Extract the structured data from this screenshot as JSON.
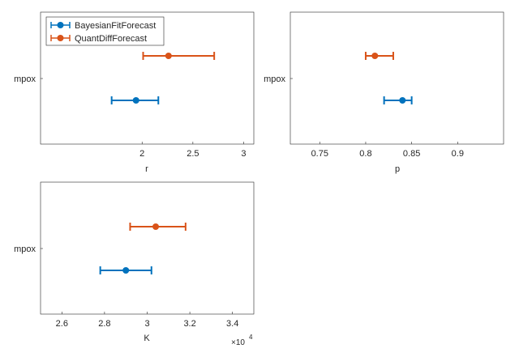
{
  "chart_data": [
    {
      "type": "errorbar",
      "xlabel": "r",
      "category_labels": [
        "mpox"
      ],
      "xlim": [
        1.0,
        3.1
      ],
      "xticks": [
        2,
        2.5,
        3
      ],
      "xtick_labels": [
        "2",
        "2.5",
        "3"
      ],
      "legend": {
        "location": "top-left",
        "entries": [
          "BayesianFitForecast",
          "QuantDiffForecast"
        ]
      },
      "series": [
        {
          "name": "BayesianFitForecast",
          "color": "#0072BD",
          "estimate": 1.94,
          "lower": 1.7,
          "upper": 2.16
        },
        {
          "name": "QuantDiffForecast",
          "color": "#D95319",
          "estimate": 2.26,
          "lower": 2.01,
          "upper": 2.71
        }
      ]
    },
    {
      "type": "errorbar",
      "xlabel": "p",
      "category_labels": [
        "mpox"
      ],
      "xlim": [
        0.718,
        0.95
      ],
      "xticks": [
        0.75,
        0.8,
        0.85,
        0.9
      ],
      "xtick_labels": [
        "0.75",
        "0.8",
        "0.85",
        "0.9"
      ],
      "series": [
        {
          "name": "BayesianFitForecast",
          "color": "#0072BD",
          "estimate": 0.84,
          "lower": 0.82,
          "upper": 0.85
        },
        {
          "name": "QuantDiffForecast",
          "color": "#D95319",
          "estimate": 0.81,
          "lower": 0.8,
          "upper": 0.83
        }
      ]
    },
    {
      "type": "errorbar",
      "xlabel": "K",
      "exponent_label": "×10",
      "exponent_power": "4",
      "category_labels": [
        "mpox"
      ],
      "xlim": [
        2.5,
        3.5
      ],
      "xticks": [
        2.6,
        2.8,
        3.0,
        3.2,
        3.4
      ],
      "xtick_labels": [
        "2.6",
        "2.8",
        "3",
        "3.2",
        "3.4"
      ],
      "series": [
        {
          "name": "BayesianFitForecast",
          "color": "#0072BD",
          "estimate": 2.9,
          "lower": 2.78,
          "upper": 3.02
        },
        {
          "name": "QuantDiffForecast",
          "color": "#D95319",
          "estimate": 3.04,
          "lower": 2.92,
          "upper": 3.18
        }
      ]
    }
  ]
}
